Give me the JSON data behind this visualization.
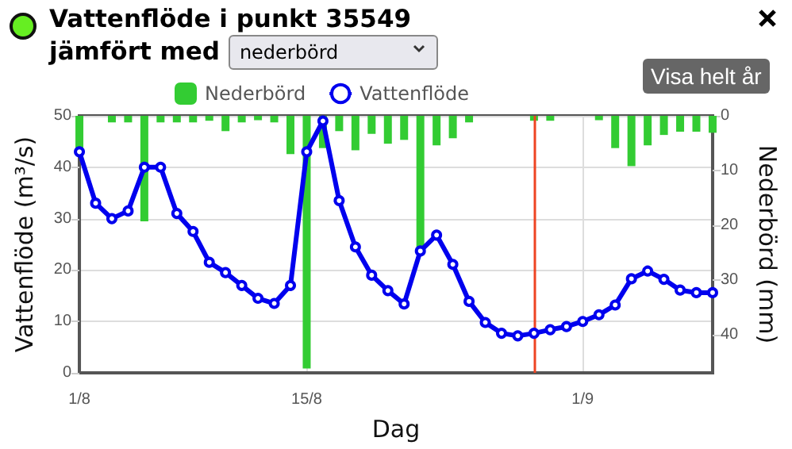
{
  "chart_data": {
    "type": "bar",
    "title": "Vattenflöde i punkt 35549",
    "subtitle": "jämfört med",
    "annotations": [
      "nederbörd",
      "Visa helt år"
    ],
    "xlabel": "Dag",
    "ylabel": "Vattenflöde (m³/s)",
    "y2label": "Nederbörd (mm)",
    "x": [
      "--08-01",
      "--08-02",
      "--08-03",
      "--08-04",
      "--08-05",
      "--08-06",
      "--08-07",
      "--08-08",
      "--08-09",
      "--08-10",
      "--08-11",
      "--08-12",
      "--08-13",
      "--08-14",
      "--08-15",
      "--08-16",
      "--08-17",
      "--08-18",
      "--08-19",
      "--08-20",
      "--08-21",
      "--08-22",
      "--08-23",
      "--08-24",
      "--08-25",
      "--08-26",
      "--08-27",
      "--08-28",
      "--08-29",
      "--08-30",
      "--08-31",
      "--09-01",
      "--09-02",
      "--09-03",
      "--09-04",
      "--09-05",
      "--09-06",
      "--09-07",
      "--09-08",
      "--09-09"
    ],
    "series": [
      {
        "name": "Nederbörd",
        "axis": "y2",
        "color": "#33cc33",
        "values": [
          5.9,
          0,
          1.2,
          1.2,
          19.3,
          1.2,
          1.2,
          1.2,
          0.9,
          2.8,
          1.2,
          0.8,
          1.2,
          7.0,
          46.2,
          5.9,
          2.8,
          6.3,
          3.3,
          5.1,
          4.4,
          24.1,
          5.4,
          4.1,
          1.2,
          0,
          0,
          0,
          0.9,
          0.9,
          0,
          0,
          0.8,
          5.9,
          9.2,
          5.4,
          3.5,
          2.9,
          2.9,
          3.1
        ]
      },
      {
        "name": "Vattenflöde",
        "type": "line",
        "color": "#0000ee",
        "marker": "circle",
        "line_style": "solid",
        "values": [
          43,
          33,
          30,
          31.5,
          40,
          40,
          31,
          27.5,
          21.5,
          19.5,
          17,
          14.5,
          13.5,
          17,
          43,
          49,
          33.5,
          24.5,
          19,
          16,
          13.4,
          23.7,
          26.8,
          21.1,
          13.9,
          9.8,
          7.7,
          7.2,
          7.7,
          8.4,
          9.0,
          10.0,
          11.3,
          13.2,
          18.3,
          19.8,
          18.2,
          16.1,
          15.6,
          15.6
        ]
      }
    ],
    "xlim": [
      "--08-01",
      "--09-09"
    ],
    "xticks": [
      {
        "value": "--08-01",
        "label": "1/8"
      },
      {
        "value": "--08-15",
        "label": "15/8"
      },
      {
        "value": "--09-01",
        "label": "1/9"
      }
    ],
    "ylim": [
      0,
      50
    ],
    "yticks": [
      0,
      10,
      20,
      30,
      40,
      50
    ],
    "y2lim": [
      47,
      0
    ],
    "y2ticks": [
      0,
      10,
      20,
      30,
      40
    ],
    "ref_lines": [
      {
        "axis": "x",
        "value": "--08-29",
        "color": "#ee4422"
      }
    ],
    "grid": true,
    "legend": "top"
  }
}
